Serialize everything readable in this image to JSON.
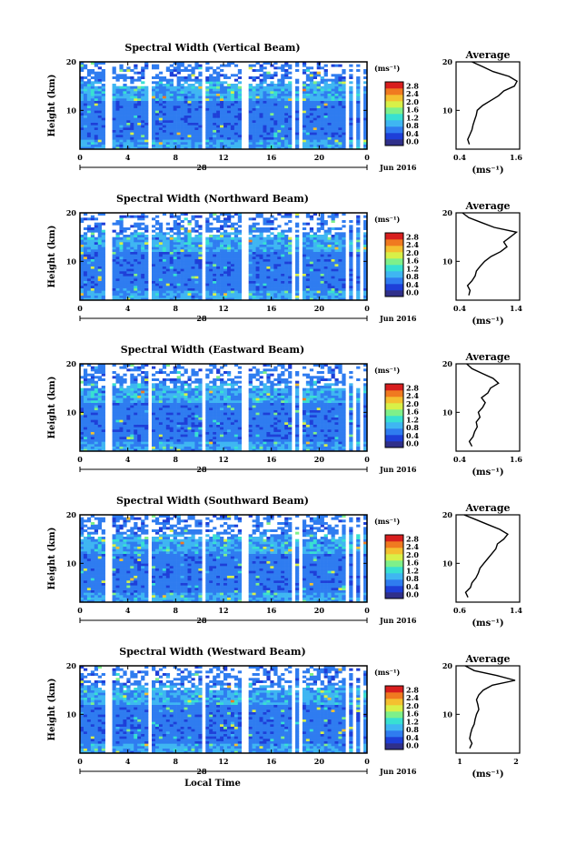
{
  "figure": {
    "xlabel": "Local Time",
    "date_label": "Jun 2016",
    "day_label": "28",
    "height_label": "Height (km)",
    "colorbar_unit": "(ms⁻¹)",
    "avg_title": "Average",
    "avg_xlabel": "(ms⁻¹)",
    "x_ticks": [
      "0",
      "4",
      "8",
      "12",
      "16",
      "20",
      "0"
    ],
    "y_ticks": [
      "20",
      "10"
    ],
    "colorbar_ticks": [
      "0.0",
      "0.4",
      "0.8",
      "1.2",
      "1.6",
      "2.0",
      "2.4",
      "2.8"
    ],
    "colormap": [
      "#30308a",
      "#1e3fd8",
      "#2f7cf0",
      "#3fb6f2",
      "#38e0d2",
      "#7ef08a",
      "#d8f048",
      "#f4c030",
      "#f07a20",
      "#d81e1e"
    ]
  },
  "chart_data": [
    {
      "type": "heatmap",
      "title": "Spectral Width (Vertical Beam)",
      "xlabel": "Local Time",
      "ylabel": "Height (km)",
      "xlim": [
        0,
        24
      ],
      "ylim": [
        2,
        20
      ],
      "clim": [
        0.0,
        3.0
      ],
      "data_gaps_hours": [
        [
          2.2,
          2.7
        ],
        [
          5.6,
          6.0
        ],
        [
          10.2,
          10.6
        ],
        [
          13.6,
          14.0
        ],
        [
          17.6,
          18.0
        ],
        [
          18.3,
          18.6
        ],
        [
          21.5,
          21.7
        ],
        [
          22.2,
          22.4
        ],
        [
          22.8,
          23.0
        ],
        [
          23.4,
          23.6
        ]
      ],
      "average_profile": {
        "title": "Average",
        "xlabel": "(ms⁻¹)",
        "xlim": [
          0.4,
          1.6
        ],
        "xticks": [
          "0.4",
          "1.6"
        ],
        "height_km": [
          3,
          4,
          5,
          6,
          7,
          8,
          9,
          10,
          11,
          12,
          13,
          14,
          15,
          16,
          17,
          18,
          19,
          20
        ],
        "value": [
          0.65,
          0.62,
          0.66,
          0.7,
          0.72,
          0.75,
          0.78,
          0.8,
          0.9,
          1.05,
          1.2,
          1.3,
          1.5,
          1.55,
          1.4,
          1.1,
          0.9,
          0.7
        ]
      }
    },
    {
      "type": "heatmap",
      "title": "Spectral Width (Northward Beam)",
      "xlabel": "Local Time",
      "ylabel": "Height (km)",
      "xlim": [
        0,
        24
      ],
      "ylim": [
        2,
        20
      ],
      "clim": [
        0.0,
        3.0
      ],
      "data_gaps_hours": [
        [
          2.2,
          2.7
        ],
        [
          5.6,
          6.0
        ],
        [
          10.2,
          10.6
        ],
        [
          13.6,
          14.0
        ],
        [
          17.6,
          18.0
        ],
        [
          18.3,
          18.6
        ],
        [
          21.5,
          21.7
        ],
        [
          22.2,
          22.4
        ],
        [
          22.8,
          23.0
        ],
        [
          23.4,
          23.6
        ]
      ],
      "average_profile": {
        "title": "Average",
        "xlabel": "(ms⁻¹)",
        "xlim": [
          0.4,
          1.4
        ],
        "xticks": [
          "0.4",
          "1.4"
        ],
        "height_km": [
          3,
          4,
          5,
          6,
          7,
          8,
          9,
          10,
          11,
          12,
          13,
          14,
          15,
          16,
          17,
          18,
          19,
          20
        ],
        "value": [
          0.6,
          0.62,
          0.58,
          0.65,
          0.7,
          0.72,
          0.78,
          0.85,
          0.95,
          1.1,
          1.2,
          1.15,
          1.25,
          1.35,
          1.0,
          0.8,
          0.6,
          0.5
        ]
      }
    },
    {
      "type": "heatmap",
      "title": "Spectral Width (Eastward Beam)",
      "xlabel": "Local Time",
      "ylabel": "Height (km)",
      "xlim": [
        0,
        24
      ],
      "ylim": [
        2,
        20
      ],
      "clim": [
        0.0,
        3.0
      ],
      "data_gaps_hours": [
        [
          2.2,
          2.7
        ],
        [
          5.6,
          6.0
        ],
        [
          10.2,
          10.6
        ],
        [
          13.6,
          14.0
        ],
        [
          17.6,
          18.0
        ],
        [
          18.3,
          18.6
        ],
        [
          21.5,
          21.7
        ],
        [
          22.2,
          22.4
        ],
        [
          22.8,
          23.0
        ],
        [
          23.4,
          23.6
        ]
      ],
      "average_profile": {
        "title": "Average",
        "xlabel": "(ms⁻¹)",
        "xlim": [
          0.4,
          1.6
        ],
        "xticks": [
          "0.4",
          "1.6"
        ],
        "height_km": [
          3,
          4,
          5,
          6,
          7,
          8,
          9,
          10,
          11,
          12,
          13,
          14,
          15,
          16,
          17,
          18,
          19,
          20
        ],
        "value": [
          0.7,
          0.65,
          0.72,
          0.75,
          0.8,
          0.78,
          0.85,
          0.82,
          0.9,
          0.95,
          0.88,
          1.0,
          1.05,
          1.2,
          1.1,
          0.9,
          0.7,
          0.6
        ]
      }
    },
    {
      "type": "heatmap",
      "title": "Spectral Width (Southward Beam)",
      "xlabel": "Local Time",
      "ylabel": "Height (km)",
      "xlim": [
        0,
        24
      ],
      "ylim": [
        2,
        20
      ],
      "clim": [
        0.0,
        3.0
      ],
      "data_gaps_hours": [
        [
          2.2,
          2.7
        ],
        [
          5.6,
          6.0
        ],
        [
          10.2,
          10.6
        ],
        [
          13.6,
          14.0
        ],
        [
          17.6,
          18.0
        ],
        [
          18.3,
          18.6
        ],
        [
          21.5,
          21.7
        ],
        [
          22.2,
          22.4
        ],
        [
          22.8,
          23.0
        ],
        [
          23.4,
          23.6
        ]
      ],
      "average_profile": {
        "title": "Average",
        "xlabel": "(ms⁻¹)",
        "xlim": [
          0.6,
          1.4
        ],
        "xticks": [
          "0.6",
          "1.4"
        ],
        "height_km": [
          3,
          4,
          5,
          6,
          7,
          8,
          9,
          10,
          11,
          12,
          13,
          14,
          15,
          16,
          17,
          18,
          19,
          20
        ],
        "value": [
          0.75,
          0.72,
          0.78,
          0.8,
          0.85,
          0.88,
          0.9,
          0.95,
          1.0,
          1.05,
          1.1,
          1.12,
          1.2,
          1.25,
          1.15,
          1.0,
          0.85,
          0.7
        ]
      }
    },
    {
      "type": "heatmap",
      "title": "Spectral Width (Westward Beam)",
      "xlabel": "Local Time",
      "ylabel": "Height (km)",
      "xlim": [
        0,
        24
      ],
      "ylim": [
        2,
        20
      ],
      "clim": [
        0.0,
        3.0
      ],
      "data_gaps_hours": [
        [
          2.2,
          2.7
        ],
        [
          5.6,
          6.0
        ],
        [
          10.2,
          10.6
        ],
        [
          13.6,
          14.0
        ],
        [
          17.6,
          18.0
        ],
        [
          18.3,
          18.6
        ],
        [
          21.5,
          21.7
        ],
        [
          22.2,
          22.4
        ],
        [
          22.8,
          23.0
        ],
        [
          23.4,
          23.6
        ]
      ],
      "average_profile": {
        "title": "Average",
        "xlabel": "(ms⁻¹)",
        "xlim": [
          0.6,
          2.0
        ],
        "xticks": [
          "1",
          "2"
        ],
        "height_km": [
          3,
          4,
          5,
          6,
          7,
          8,
          9,
          10,
          11,
          12,
          13,
          14,
          15,
          16,
          17,
          18,
          19,
          20
        ],
        "value": [
          0.9,
          0.95,
          0.9,
          0.92,
          0.95,
          1.0,
          1.02,
          1.05,
          1.1,
          1.08,
          1.05,
          1.1,
          1.2,
          1.4,
          1.9,
          1.5,
          1.0,
          0.8
        ]
      }
    }
  ]
}
